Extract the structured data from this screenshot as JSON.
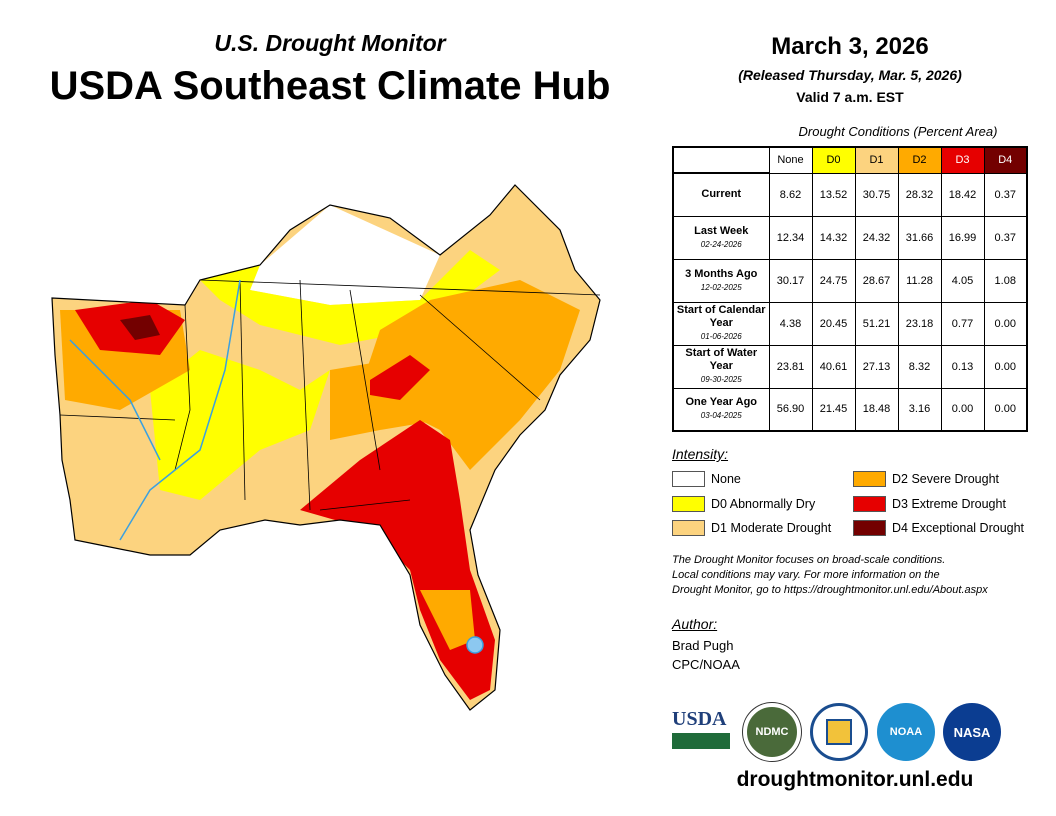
{
  "header": {
    "subtitle": "U.S. Drought Monitor",
    "title": "USDA Southeast Climate Hub",
    "date": "March 3, 2026",
    "released": "(Released Thursday, Mar. 5, 2026)",
    "valid": "Valid 7 a.m. EST"
  },
  "table": {
    "caption": "Drought Conditions (Percent Area)",
    "columns": [
      "None",
      "D0",
      "D1",
      "D2",
      "D3",
      "D4"
    ],
    "rows": [
      {
        "label": "Current",
        "date": "",
        "values": [
          "8.62",
          "13.52",
          "30.75",
          "28.32",
          "18.42",
          "0.37"
        ]
      },
      {
        "label": "Last Week",
        "date": "02-24-2026",
        "values": [
          "12.34",
          "14.32",
          "24.32",
          "31.66",
          "16.99",
          "0.37"
        ]
      },
      {
        "label": "3 Months Ago",
        "date": "12-02-2025",
        "values": [
          "30.17",
          "24.75",
          "28.67",
          "11.28",
          "4.05",
          "1.08"
        ]
      },
      {
        "label": "Start of Calendar Year",
        "date": "01-06-2026",
        "values": [
          "4.38",
          "20.45",
          "51.21",
          "23.18",
          "0.77",
          "0.00"
        ]
      },
      {
        "label": "Start of Water Year",
        "date": "09-30-2025",
        "values": [
          "23.81",
          "40.61",
          "27.13",
          "8.32",
          "0.13",
          "0.00"
        ]
      },
      {
        "label": "One Year Ago",
        "date": "03-04-2025",
        "values": [
          "56.90",
          "21.45",
          "18.48",
          "3.16",
          "0.00",
          "0.00"
        ]
      }
    ]
  },
  "legend": {
    "heading": "Intensity:",
    "items": [
      {
        "label": "None",
        "color": "#ffffff"
      },
      {
        "label": "D0 Abnormally Dry",
        "color": "#ffff00"
      },
      {
        "label": "D1 Moderate Drought",
        "color": "#fcd37f"
      },
      {
        "label": "D2 Severe Drought",
        "color": "#ffaa00"
      },
      {
        "label": "D3 Extreme Drought",
        "color": "#e60000"
      },
      {
        "label": "D4 Exceptional Drought",
        "color": "#730000"
      }
    ]
  },
  "note": [
    "The Drought Monitor focuses on broad-scale conditions.",
    "Local conditions may vary. For more information on the",
    "Drought Monitor, go to https://droughtmonitor.unl.edu/About.aspx"
  ],
  "author": {
    "heading": "Author:",
    "name": "Brad Pugh",
    "org": "CPC/NOAA"
  },
  "logos": [
    "USDA",
    "NDMC",
    "NOAA",
    "NASA"
  ],
  "url": "droughtmonitor.unl.edu"
}
